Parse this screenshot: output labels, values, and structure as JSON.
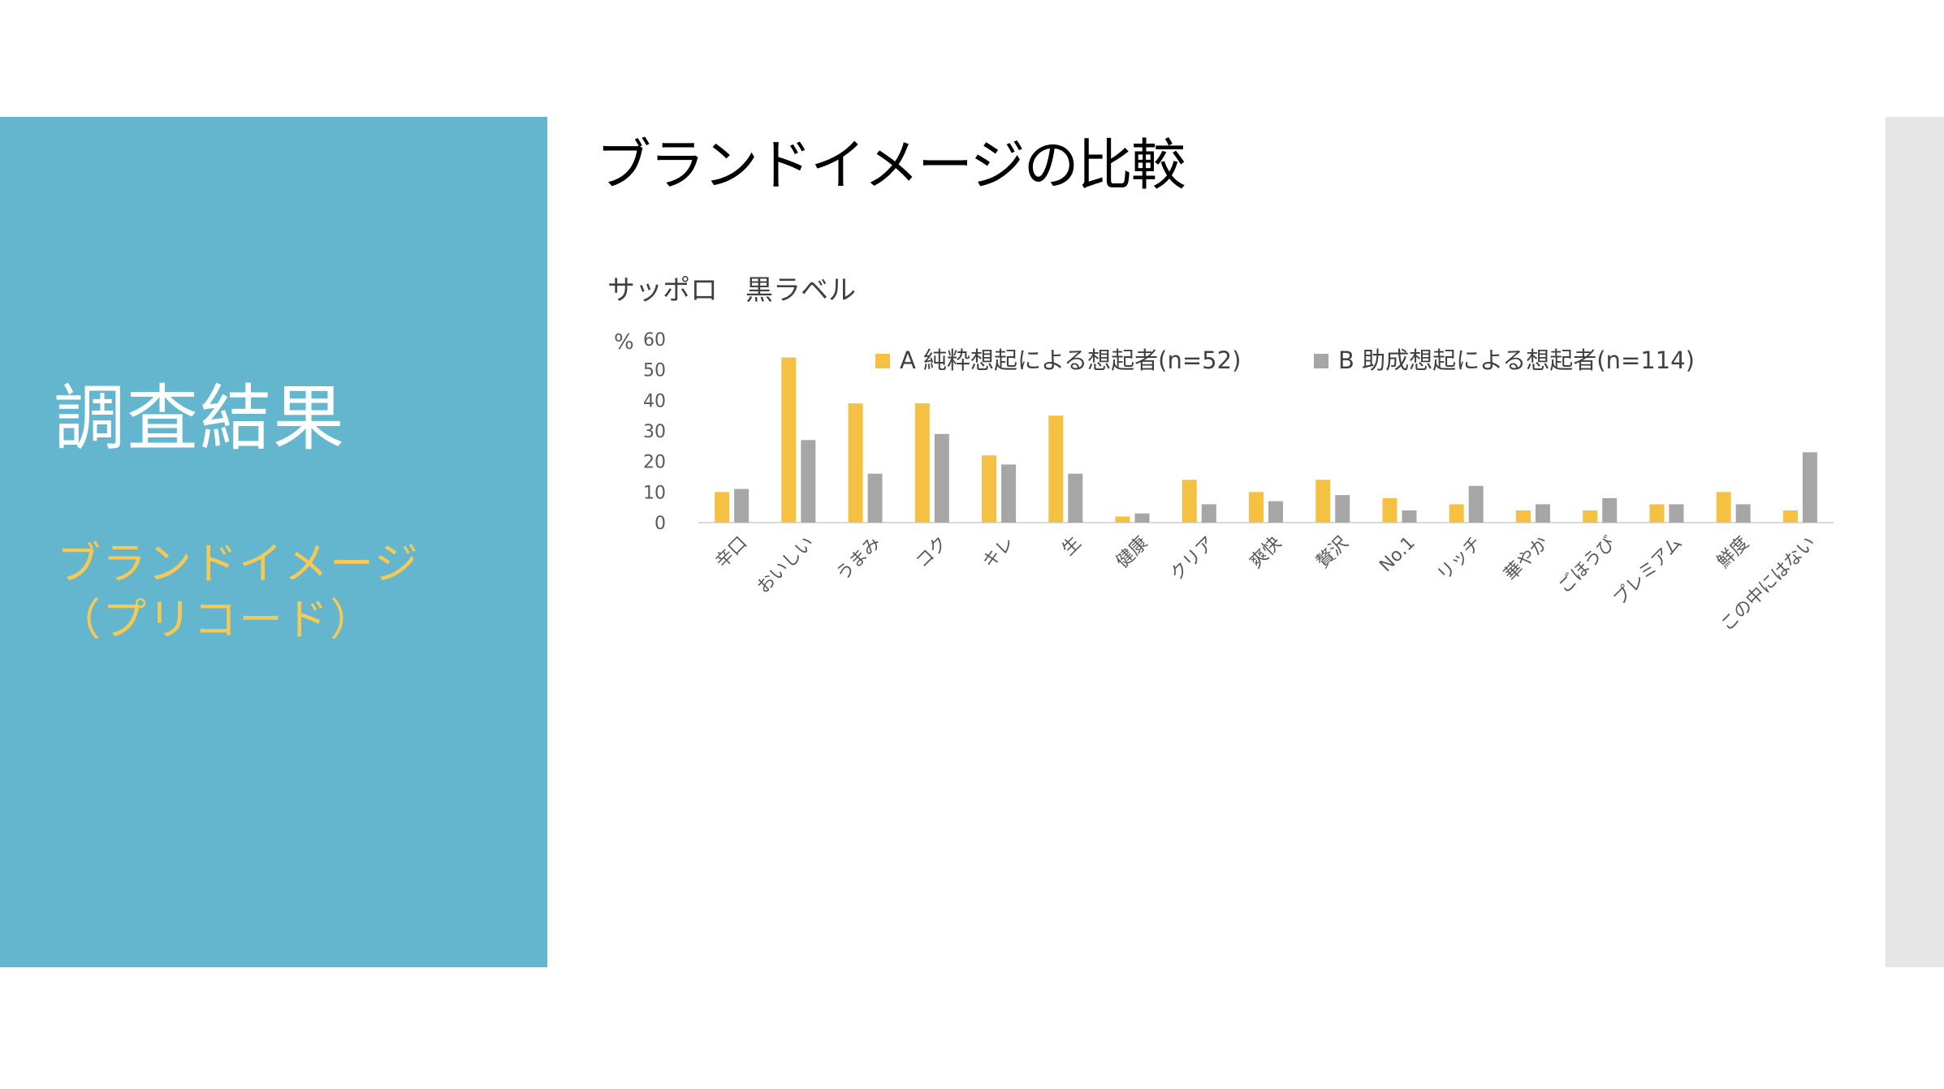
{
  "sidebar": {
    "title": "調査結果",
    "subtitle_lines": [
      "ブランドイメージ",
      "（プリコード）"
    ]
  },
  "slide": {
    "title": "ブランドイメージの比較"
  },
  "colors": {
    "panel": "#64b6cf",
    "subtitle": "#f5c954",
    "series_a": "#f5c142",
    "series_b": "#a6a6a6",
    "strip": "#e6e6e6"
  },
  "chart_data": {
    "type": "bar",
    "title": "サッポロ　黒ラベル",
    "ylabel": "%",
    "xlabel": "",
    "ylim": [
      0,
      60
    ],
    "yticks": [
      0,
      10,
      20,
      30,
      40,
      50,
      60
    ],
    "grid": false,
    "legend_position": "top",
    "categories": [
      "辛口",
      "おいしい",
      "うまみ",
      "コク",
      "キレ",
      "生",
      "健康",
      "クリア",
      "爽快",
      "贅沢",
      "No.1",
      "リッチ",
      "華やか",
      "ごほうび",
      "プレミアム",
      "鮮度",
      "この中にはない"
    ],
    "series": [
      {
        "name": "A 純粋想起による想起者(n=52)",
        "color": "#f5c142",
        "values": [
          10,
          54,
          39,
          39,
          22,
          35,
          2,
          14,
          10,
          14,
          8,
          6,
          4,
          4,
          6,
          10,
          4
        ]
      },
      {
        "name": "B 助成想起による想起者(n=114)",
        "color": "#a6a6a6",
        "values": [
          11,
          27,
          16,
          29,
          19,
          16,
          3,
          6,
          7,
          9,
          4,
          12,
          6,
          8,
          6,
          6,
          23
        ]
      }
    ]
  }
}
